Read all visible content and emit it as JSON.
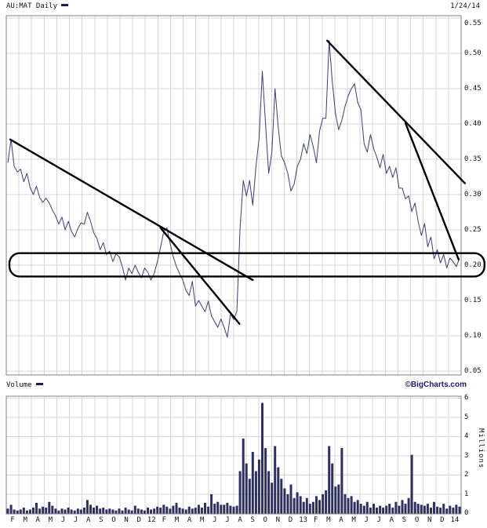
{
  "header": {
    "symbol_title": "AU:MAT Daily",
    "date": "1/24/14"
  },
  "volume_pane": {
    "label": "Volume",
    "credit": "©BigCharts.com",
    "unit": "Millions"
  },
  "colors": {
    "series_line": "#3c3c78",
    "volume_bar": "#30305e",
    "annotation": "#000000",
    "grid": "#d4d4d4",
    "frame": "#808080",
    "accent_navy": "#1a1a66"
  },
  "chart_data": [
    {
      "type": "line",
      "title": "AU:MAT Daily",
      "x_start": "Feb 2011",
      "x_end": "Jan 24 2014",
      "cadence": "weekly",
      "ylim": [
        0.045,
        0.553
      ],
      "y_ticks": [
        0.55,
        0.5,
        0.45,
        0.4,
        0.35,
        0.3,
        0.25,
        0.2,
        0.15,
        0.1,
        0.05
      ],
      "x_tick_labels": [
        "F",
        "M",
        "A",
        "M",
        "J",
        "J",
        "A",
        "S",
        "O",
        "N",
        "D",
        "12",
        "F",
        "M",
        "A",
        "M",
        "J",
        "J",
        "A",
        "S",
        "O",
        "N",
        "D",
        "13",
        "F",
        "M",
        "A",
        "M",
        "J",
        "J",
        "A",
        "S",
        "O",
        "N",
        "D",
        "14"
      ],
      "grid": true,
      "legend_position": "top-left",
      "series": [
        {
          "name": "AU:MAT close",
          "color": "#3c3c78",
          "values": [
            0.345,
            0.378,
            0.34,
            0.332,
            0.336,
            0.318,
            0.33,
            0.31,
            0.3,
            0.312,
            0.296,
            0.289,
            0.295,
            0.288,
            0.278,
            0.27,
            0.258,
            0.268,
            0.25,
            0.262,
            0.248,
            0.24,
            0.252,
            0.26,
            0.258,
            0.275,
            0.262,
            0.246,
            0.238,
            0.222,
            0.232,
            0.215,
            0.22,
            0.205,
            0.216,
            0.212,
            0.198,
            0.179,
            0.196,
            0.188,
            0.2,
            0.19,
            0.182,
            0.196,
            0.19,
            0.179,
            0.188,
            0.205,
            0.225,
            0.248,
            0.253,
            0.231,
            0.212,
            0.198,
            0.188,
            0.179,
            0.164,
            0.157,
            0.177,
            0.142,
            0.15,
            0.142,
            0.134,
            0.149,
            0.128,
            0.12,
            0.112,
            0.124,
            0.112,
            0.098,
            0.131,
            0.123,
            0.135,
            0.252,
            0.32,
            0.298,
            0.32,
            0.285,
            0.34,
            0.38,
            0.475,
            0.4,
            0.33,
            0.36,
            0.45,
            0.395,
            0.355,
            0.345,
            0.33,
            0.305,
            0.315,
            0.34,
            0.35,
            0.372,
            0.358,
            0.385,
            0.368,
            0.345,
            0.39,
            0.408,
            0.408,
            0.518,
            0.46,
            0.415,
            0.392,
            0.405,
            0.425,
            0.44,
            0.45,
            0.457,
            0.43,
            0.42,
            0.372,
            0.36,
            0.385,
            0.365,
            0.353,
            0.338,
            0.357,
            0.33,
            0.34,
            0.324,
            0.338,
            0.309,
            0.309,
            0.294,
            0.298,
            0.276,
            0.288,
            0.262,
            0.242,
            0.259,
            0.226,
            0.24,
            0.209,
            0.222,
            0.203,
            0.215,
            0.196,
            0.21,
            0.205,
            0.198,
            0.21
          ]
        }
      ],
      "annotations": {
        "trendlines": [
          {
            "from_month": 0.31,
            "from_price": 0.378,
            "to_month": 19.5,
            "to_price": 0.179
          },
          {
            "from_month": 12.2,
            "from_price": 0.253,
            "to_month": 18.45,
            "to_price": 0.117
          },
          {
            "from_month": 25.4,
            "from_price": 0.518,
            "to_month": 36.3,
            "to_price": 0.316
          },
          {
            "from_month": 31.6,
            "from_price": 0.401,
            "to_month": 35.8,
            "to_price": 0.208
          }
        ],
        "support_zone": {
          "style": "rounded-rect",
          "from_month": 0.25,
          "to_month": 37.85,
          "price_top": 0.217,
          "price_bottom": 0.184
        },
        "month_index_origin": "0 = Feb 2011, 36 = end Jan 2014"
      }
    },
    {
      "type": "bar",
      "title": "Volume",
      "unit": "Millions",
      "ylim": [
        0,
        6.1
      ],
      "y_ticks": [
        6,
        5,
        4,
        3,
        2,
        1,
        0
      ],
      "color": "#30305e",
      "values": [
        0.25,
        0.45,
        0.2,
        0.15,
        0.2,
        0.3,
        0.15,
        0.2,
        0.3,
        0.55,
        0.25,
        0.35,
        0.3,
        0.6,
        0.4,
        0.25,
        0.15,
        0.25,
        0.2,
        0.3,
        0.2,
        0.15,
        0.25,
        0.2,
        0.3,
        0.7,
        0.45,
        0.3,
        0.4,
        0.25,
        0.3,
        0.2,
        0.25,
        0.2,
        0.15,
        0.25,
        0.15,
        0.3,
        0.2,
        0.15,
        0.4,
        0.25,
        0.2,
        0.15,
        0.3,
        0.2,
        0.25,
        0.35,
        0.3,
        0.45,
        0.35,
        0.25,
        0.4,
        0.55,
        0.3,
        0.25,
        0.2,
        0.35,
        0.25,
        0.3,
        0.45,
        0.3,
        0.55,
        0.35,
        1.0,
        0.5,
        0.6,
        0.45,
        0.45,
        0.55,
        0.4,
        0.35,
        0.4,
        2.2,
        3.9,
        2.6,
        1.8,
        3.2,
        2.2,
        2.8,
        5.75,
        3.4,
        2.2,
        1.6,
        3.5,
        2.4,
        1.8,
        1.3,
        1.0,
        1.5,
        0.8,
        1.1,
        0.9,
        0.6,
        0.8,
        0.5,
        0.6,
        0.9,
        0.7,
        1.0,
        1.2,
        3.5,
        2.6,
        1.4,
        1.5,
        3.4,
        1.0,
        0.8,
        0.9,
        0.6,
        0.7,
        0.5,
        0.4,
        0.6,
        0.3,
        0.5,
        0.3,
        0.4,
        0.3,
        0.4,
        0.5,
        0.3,
        0.6,
        0.4,
        0.7,
        0.5,
        0.8,
        3.05,
        0.6,
        0.5,
        0.45,
        0.4,
        0.5,
        0.3,
        0.6,
        0.35,
        0.3,
        0.5,
        0.25,
        0.4,
        0.3,
        0.45,
        0.35
      ]
    }
  ]
}
